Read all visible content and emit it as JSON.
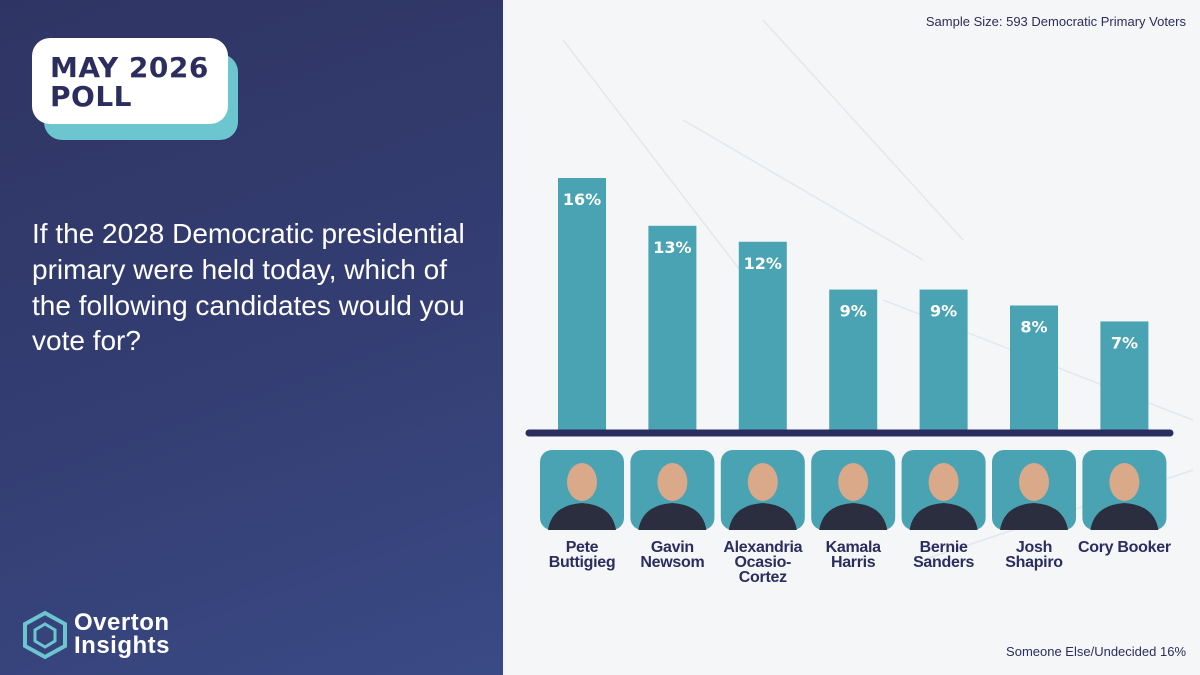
{
  "chart_data": {
    "type": "bar",
    "badge": "MAY 2026 POLL",
    "title": "If the 2028 Democratic presidential primary were held today, which of the following candidates would you vote for?",
    "subtitle": "Sample Size: 593 Democratic Primary Voters",
    "categories": [
      "Pete Buttigieg",
      "Gavin Newsom",
      "Alexandria Ocasio-Cortez",
      "Kamala Harris",
      "Bernie Sanders",
      "Josh Shapiro",
      "Cory Booker"
    ],
    "values": [
      16,
      13,
      12,
      9,
      9,
      8,
      7
    ],
    "value_labels": [
      "16%",
      "13%",
      "12%",
      "9%",
      "9%",
      "8%",
      "7%"
    ],
    "color": "#4aa3b3",
    "annotation": "Someone Else/Undecided 16%",
    "brand": "Overton Insights"
  }
}
